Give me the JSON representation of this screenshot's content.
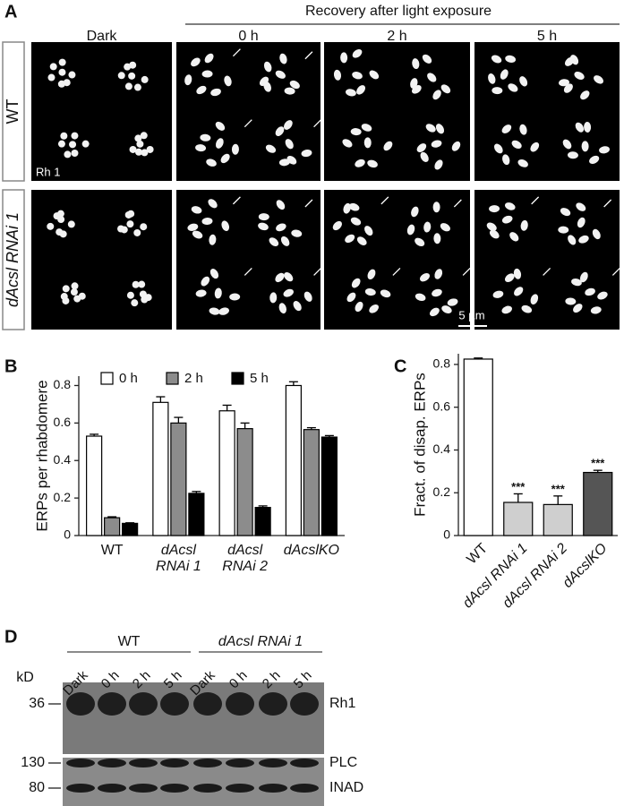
{
  "panel_labels": [
    "A",
    "B",
    "C",
    "D"
  ],
  "panel_a": {
    "group_header": "Recovery after light exposure",
    "columns": [
      "Dark",
      "0 h",
      "2 h",
      "5 h"
    ],
    "rows": [
      "WT",
      "dAcsl RNAi 1"
    ],
    "stain": "Rh 1",
    "scale_bar": "5 µm"
  },
  "chart_data": [
    {
      "type": "bar",
      "y_label": "ERPs per rhabdomere",
      "categories": [
        "WT",
        "dAcsl RNAi 1",
        "dAcsl RNAi 2",
        "dAcslKO"
      ],
      "series": [
        {
          "name": "0 h",
          "color": "#ffffff",
          "values": [
            0.53,
            0.71,
            0.665,
            0.8
          ],
          "error": [
            0.01,
            0.03,
            0.03,
            0.02
          ]
        },
        {
          "name": "2 h",
          "color": "#8c8c8c",
          "values": [
            0.095,
            0.6,
            0.57,
            0.565
          ],
          "error": [
            0.005,
            0.03,
            0.03,
            0.01
          ]
        },
        {
          "name": "5 h",
          "color": "#000000",
          "values": [
            0.065,
            0.225,
            0.15,
            0.525
          ],
          "error": [
            0.003,
            0.01,
            0.008,
            0.008
          ]
        }
      ],
      "ylim": [
        0,
        0.85
      ],
      "yticks": [
        0,
        0.2,
        0.4,
        0.6,
        0.8
      ],
      "legend": "top"
    },
    {
      "type": "bar",
      "y_label": "Fract. of disap. ERPs",
      "categories": [
        "WT",
        "dAcsl RNAi 1",
        "dAcsl RNAi 2",
        "dAcslKO"
      ],
      "values": [
        0.825,
        0.155,
        0.145,
        0.295
      ],
      "error": [
        0.005,
        0.04,
        0.04,
        0.01
      ],
      "colors": [
        "#ffffff",
        "#cfcfcf",
        "#cfcfcf",
        "#555555"
      ],
      "significance": [
        null,
        "***",
        "***",
        "***"
      ],
      "ylim": [
        0,
        0.85
      ],
      "yticks": [
        0,
        0.2,
        0.4,
        0.6,
        0.8
      ]
    }
  ],
  "panel_d": {
    "groups": [
      "WT",
      "dAcsl RNAi 1"
    ],
    "lanes": [
      "Dark",
      "0 h",
      "2 h",
      "5 h",
      "Dark",
      "0 h",
      "2 h",
      "5 h"
    ],
    "unit": "kD",
    "markers": [
      36,
      130,
      80
    ],
    "bands": [
      "Rh1",
      "PLC",
      "INAD"
    ]
  }
}
